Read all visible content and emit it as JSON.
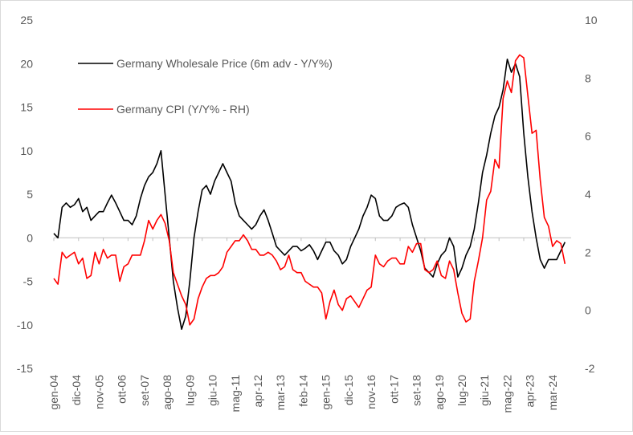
{
  "chart_data": {
    "type": "line",
    "x_labels": [
      "gen-04",
      "dic-04",
      "nov-05",
      "ott-06",
      "set-07",
      "ago-08",
      "lug-09",
      "giu-10",
      "mag-11",
      "apr-12",
      "mar-13",
      "feb-14",
      "gen-15",
      "dic-15",
      "nov-16",
      "ott-17",
      "set-18",
      "ago-19",
      "lug-20",
      "giu-21",
      "mag-22",
      "apr-23",
      "mar-24"
    ],
    "y_left": {
      "ticks": [
        -15,
        -10,
        -5,
        0,
        5,
        10,
        15,
        20,
        25
      ],
      "ylim": [
        -15,
        25
      ]
    },
    "y_right": {
      "ticks": [
        -2,
        0,
        2,
        4,
        6,
        8,
        10
      ],
      "ylim": [
        -2,
        10
      ]
    },
    "grid": false,
    "legend_position": "top-left, inside plot",
    "series": [
      {
        "name": "Germany Wholesale Price (6m adv - Y/Y%)",
        "color": "#000000",
        "axis": "left",
        "points": [
          [
            "2004-01",
            0.5
          ],
          [
            "2004-03",
            0.0
          ],
          [
            "2004-05",
            3.5
          ],
          [
            "2004-07",
            4.0
          ],
          [
            "2004-09",
            3.5
          ],
          [
            "2004-11",
            3.8
          ],
          [
            "2005-01",
            4.5
          ],
          [
            "2005-03",
            3.0
          ],
          [
            "2005-05",
            3.5
          ],
          [
            "2005-07",
            2.0
          ],
          [
            "2005-09",
            2.5
          ],
          [
            "2005-11",
            3.0
          ],
          [
            "2006-01",
            3.0
          ],
          [
            "2006-03",
            4.0
          ],
          [
            "2006-05",
            4.9
          ],
          [
            "2006-07",
            4.0
          ],
          [
            "2006-09",
            3.0
          ],
          [
            "2006-11",
            2.0
          ],
          [
            "2007-01",
            2.0
          ],
          [
            "2007-03",
            1.5
          ],
          [
            "2007-05",
            2.5
          ],
          [
            "2007-07",
            4.5
          ],
          [
            "2007-09",
            6.0
          ],
          [
            "2007-11",
            7.0
          ],
          [
            "2008-01",
            7.5
          ],
          [
            "2008-03",
            8.5
          ],
          [
            "2008-05",
            10.0
          ],
          [
            "2008-07",
            5.0
          ],
          [
            "2008-09",
            0.0
          ],
          [
            "2008-11",
            -5.0
          ],
          [
            "2009-01",
            -8.0
          ],
          [
            "2009-03",
            -10.5
          ],
          [
            "2009-05",
            -9.0
          ],
          [
            "2009-07",
            -5.0
          ],
          [
            "2009-09",
            0.0
          ],
          [
            "2009-11",
            3.0
          ],
          [
            "2010-01",
            5.5
          ],
          [
            "2010-03",
            6.0
          ],
          [
            "2010-05",
            5.0
          ],
          [
            "2010-07",
            6.5
          ],
          [
            "2010-09",
            7.5
          ],
          [
            "2010-11",
            8.5
          ],
          [
            "2011-01",
            7.5
          ],
          [
            "2011-03",
            6.5
          ],
          [
            "2011-05",
            4.0
          ],
          [
            "2011-07",
            2.5
          ],
          [
            "2011-09",
            2.0
          ],
          [
            "2011-11",
            1.5
          ],
          [
            "2012-01",
            1.0
          ],
          [
            "2012-03",
            1.5
          ],
          [
            "2012-05",
            2.5
          ],
          [
            "2012-07",
            3.2
          ],
          [
            "2012-09",
            2.0
          ],
          [
            "2012-11",
            0.5
          ],
          [
            "2013-01",
            -1.0
          ],
          [
            "2013-03",
            -1.5
          ],
          [
            "2013-05",
            -2.0
          ],
          [
            "2013-07",
            -1.5
          ],
          [
            "2013-09",
            -1.0
          ],
          [
            "2013-11",
            -1.0
          ],
          [
            "2014-01",
            -1.5
          ],
          [
            "2014-03",
            -1.2
          ],
          [
            "2014-05",
            -0.8
          ],
          [
            "2014-07",
            -1.5
          ],
          [
            "2014-09",
            -2.5
          ],
          [
            "2014-11",
            -1.5
          ],
          [
            "2015-01",
            -0.5
          ],
          [
            "2015-03",
            -0.5
          ],
          [
            "2015-05",
            -1.5
          ],
          [
            "2015-07",
            -2.0
          ],
          [
            "2015-09",
            -3.0
          ],
          [
            "2015-11",
            -2.5
          ],
          [
            "2016-01",
            -1.0
          ],
          [
            "2016-03",
            0.0
          ],
          [
            "2016-05",
            1.0
          ],
          [
            "2016-07",
            2.5
          ],
          [
            "2016-09",
            3.5
          ],
          [
            "2016-11",
            4.9
          ],
          [
            "2017-01",
            4.5
          ],
          [
            "2017-03",
            2.5
          ],
          [
            "2017-05",
            2.0
          ],
          [
            "2017-07",
            2.0
          ],
          [
            "2017-09",
            2.5
          ],
          [
            "2017-11",
            3.5
          ],
          [
            "2018-01",
            3.8
          ],
          [
            "2018-03",
            4.0
          ],
          [
            "2018-05",
            3.5
          ],
          [
            "2018-07",
            1.5
          ],
          [
            "2018-09",
            0.0
          ],
          [
            "2018-11",
            -1.5
          ],
          [
            "2019-01",
            -3.5
          ],
          [
            "2019-03",
            -4.0
          ],
          [
            "2019-05",
            -4.5
          ],
          [
            "2019-07",
            -3.0
          ],
          [
            "2019-09",
            -2.0
          ],
          [
            "2019-11",
            -1.5
          ],
          [
            "2020-01",
            0.0
          ],
          [
            "2020-03",
            -1.0
          ],
          [
            "2020-05",
            -4.5
          ],
          [
            "2020-07",
            -3.5
          ],
          [
            "2020-09",
            -2.0
          ],
          [
            "2020-11",
            -1.0
          ],
          [
            "2021-01",
            1.0
          ],
          [
            "2021-03",
            4.0
          ],
          [
            "2021-05",
            7.5
          ],
          [
            "2021-07",
            9.5
          ],
          [
            "2021-09",
            12.0
          ],
          [
            "2021-11",
            14.0
          ],
          [
            "2022-01",
            15.0
          ],
          [
            "2022-03",
            17.0
          ],
          [
            "2022-05",
            20.5
          ],
          [
            "2022-07",
            19.0
          ],
          [
            "2022-09",
            20.0
          ],
          [
            "2022-11",
            18.5
          ],
          [
            "2023-01",
            12.0
          ],
          [
            "2023-03",
            7.0
          ],
          [
            "2023-05",
            3.0
          ],
          [
            "2023-07",
            0.0
          ],
          [
            "2023-09",
            -2.5
          ],
          [
            "2023-11",
            -3.5
          ],
          [
            "2024-01",
            -2.5
          ],
          [
            "2024-03",
            -2.5
          ],
          [
            "2024-05",
            -2.5
          ],
          [
            "2024-07",
            -1.5
          ],
          [
            "2024-09",
            -0.5
          ]
        ]
      },
      {
        "name": "Germany CPI (Y/Y% - RH)",
        "color": "#ff0000",
        "axis": "right",
        "points": [
          [
            "2004-01",
            1.1
          ],
          [
            "2004-03",
            0.9
          ],
          [
            "2004-05",
            2.0
          ],
          [
            "2004-07",
            1.8
          ],
          [
            "2004-09",
            1.9
          ],
          [
            "2004-11",
            2.0
          ],
          [
            "2005-01",
            1.6
          ],
          [
            "2005-03",
            1.8
          ],
          [
            "2005-05",
            1.1
          ],
          [
            "2005-07",
            1.2
          ],
          [
            "2005-09",
            2.0
          ],
          [
            "2005-11",
            1.6
          ],
          [
            "2006-01",
            2.1
          ],
          [
            "2006-03",
            1.8
          ],
          [
            "2006-05",
            1.9
          ],
          [
            "2006-07",
            1.9
          ],
          [
            "2006-09",
            1.0
          ],
          [
            "2006-11",
            1.5
          ],
          [
            "2007-01",
            1.6
          ],
          [
            "2007-03",
            1.9
          ],
          [
            "2007-05",
            1.9
          ],
          [
            "2007-07",
            1.9
          ],
          [
            "2007-09",
            2.4
          ],
          [
            "2007-11",
            3.1
          ],
          [
            "2008-01",
            2.8
          ],
          [
            "2008-03",
            3.1
          ],
          [
            "2008-05",
            3.3
          ],
          [
            "2008-07",
            3.0
          ],
          [
            "2008-09",
            2.4
          ],
          [
            "2008-11",
            1.3
          ],
          [
            "2009-01",
            0.9
          ],
          [
            "2009-03",
            0.5
          ],
          [
            "2009-05",
            0.2
          ],
          [
            "2009-07",
            -0.5
          ],
          [
            "2009-09",
            -0.3
          ],
          [
            "2009-11",
            0.4
          ],
          [
            "2010-01",
            0.8
          ],
          [
            "2010-03",
            1.1
          ],
          [
            "2010-05",
            1.2
          ],
          [
            "2010-07",
            1.2
          ],
          [
            "2010-09",
            1.3
          ],
          [
            "2010-11",
            1.5
          ],
          [
            "2011-01",
            2.0
          ],
          [
            "2011-03",
            2.2
          ],
          [
            "2011-05",
            2.4
          ],
          [
            "2011-07",
            2.4
          ],
          [
            "2011-09",
            2.6
          ],
          [
            "2011-11",
            2.4
          ],
          [
            "2012-01",
            2.1
          ],
          [
            "2012-03",
            2.1
          ],
          [
            "2012-05",
            1.9
          ],
          [
            "2012-07",
            1.9
          ],
          [
            "2012-09",
            2.0
          ],
          [
            "2012-11",
            1.9
          ],
          [
            "2013-01",
            1.7
          ],
          [
            "2013-03",
            1.4
          ],
          [
            "2013-05",
            1.5
          ],
          [
            "2013-07",
            1.9
          ],
          [
            "2013-09",
            1.4
          ],
          [
            "2013-11",
            1.3
          ],
          [
            "2014-01",
            1.3
          ],
          [
            "2014-03",
            1.0
          ],
          [
            "2014-05",
            0.9
          ],
          [
            "2014-07",
            0.8
          ],
          [
            "2014-09",
            0.8
          ],
          [
            "2014-11",
            0.6
          ],
          [
            "2015-01",
            -0.3
          ],
          [
            "2015-03",
            0.3
          ],
          [
            "2015-05",
            0.7
          ],
          [
            "2015-07",
            0.2
          ],
          [
            "2015-09",
            0.0
          ],
          [
            "2015-11",
            0.4
          ],
          [
            "2016-01",
            0.5
          ],
          [
            "2016-03",
            0.3
          ],
          [
            "2016-05",
            0.1
          ],
          [
            "2016-07",
            0.4
          ],
          [
            "2016-09",
            0.7
          ],
          [
            "2016-11",
            0.8
          ],
          [
            "2017-01",
            1.9
          ],
          [
            "2017-03",
            1.6
          ],
          [
            "2017-05",
            1.5
          ],
          [
            "2017-07",
            1.7
          ],
          [
            "2017-09",
            1.8
          ],
          [
            "2017-11",
            1.8
          ],
          [
            "2018-01",
            1.6
          ],
          [
            "2018-03",
            1.6
          ],
          [
            "2018-05",
            2.2
          ],
          [
            "2018-07",
            2.0
          ],
          [
            "2018-09",
            2.3
          ],
          [
            "2018-11",
            2.3
          ],
          [
            "2019-01",
            1.4
          ],
          [
            "2019-03",
            1.3
          ],
          [
            "2019-05",
            1.4
          ],
          [
            "2019-07",
            1.7
          ],
          [
            "2019-09",
            1.2
          ],
          [
            "2019-11",
            1.1
          ],
          [
            "2020-01",
            1.7
          ],
          [
            "2020-03",
            1.4
          ],
          [
            "2020-05",
            0.6
          ],
          [
            "2020-07",
            -0.1
          ],
          [
            "2020-09",
            -0.4
          ],
          [
            "2020-11",
            -0.3
          ],
          [
            "2021-01",
            1.0
          ],
          [
            "2021-03",
            1.7
          ],
          [
            "2021-05",
            2.5
          ],
          [
            "2021-07",
            3.8
          ],
          [
            "2021-09",
            4.1
          ],
          [
            "2021-11",
            5.2
          ],
          [
            "2022-01",
            4.9
          ],
          [
            "2022-03",
            7.3
          ],
          [
            "2022-05",
            7.9
          ],
          [
            "2022-07",
            7.5
          ],
          [
            "2022-09",
            8.6
          ],
          [
            "2022-11",
            8.8
          ],
          [
            "2023-01",
            8.7
          ],
          [
            "2023-03",
            7.4
          ],
          [
            "2023-05",
            6.1
          ],
          [
            "2023-07",
            6.2
          ],
          [
            "2023-09",
            4.5
          ],
          [
            "2023-11",
            3.2
          ],
          [
            "2024-01",
            2.9
          ],
          [
            "2024-03",
            2.2
          ],
          [
            "2024-05",
            2.4
          ],
          [
            "2024-07",
            2.3
          ],
          [
            "2024-09",
            1.6
          ]
        ]
      }
    ]
  }
}
